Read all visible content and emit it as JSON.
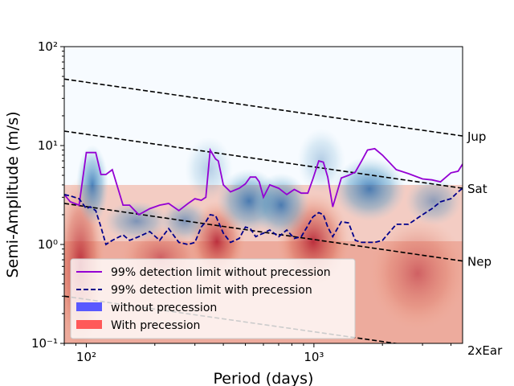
{
  "chart_data": {
    "type": "scatter",
    "xlabel": "Period (days)",
    "ylabel": "Semi-Amplitude (m/s)",
    "x_scale": "log",
    "y_scale": "log",
    "xlim": [
      80,
      4500
    ],
    "ylim": [
      0.1,
      100
    ],
    "x_ticks": [
      {
        "value": 100,
        "label": "10²"
      },
      {
        "value": 1000,
        "label": "10³"
      }
    ],
    "y_ticks": [
      {
        "value": 100,
        "label": "10²"
      },
      {
        "value": 10,
        "label": "10¹"
      },
      {
        "value": 1,
        "label": "10⁰"
      },
      {
        "value": 0.1,
        "label": "10⁻¹"
      }
    ],
    "grid": false,
    "legend_position": "lower-left",
    "reference_lines": [
      {
        "label": "Jup",
        "x": [
          80,
          4500
        ],
        "y": [
          47,
          12.5
        ],
        "color": "#000000"
      },
      {
        "label": "Sat",
        "x": [
          80,
          4500
        ],
        "y": [
          14,
          3.7
        ],
        "color": "#000000"
      },
      {
        "label": "Nep",
        "x": [
          80,
          4500
        ],
        "y": [
          2.6,
          0.68
        ],
        "color": "#000000"
      },
      {
        "label": "2xEar",
        "x": [
          80,
          4500
        ],
        "y": [
          0.3,
          0.08
        ],
        "color": "#000000"
      }
    ],
    "series": [
      {
        "name": "99% detection limit without precession",
        "style": "solid",
        "color": "#9400d3",
        "x": [
          80,
          85,
          93,
          100,
          104,
          110,
          116,
          122,
          130,
          145,
          155,
          170,
          190,
          210,
          230,
          255,
          280,
          300,
          320,
          335,
          350,
          370,
          380,
          400,
          430,
          470,
          500,
          525,
          555,
          575,
          600,
          640,
          700,
          760,
          820,
          880,
          940,
          990,
          1050,
          1100,
          1150,
          1210,
          1320,
          1420,
          1520,
          1620,
          1720,
          1850,
          2000,
          2300,
          2600,
          3000,
          3300,
          3600,
          4000,
          4300,
          4500
        ],
        "y": [
          3.2,
          2.7,
          2.5,
          8.5,
          8.5,
          8.5,
          5.1,
          5.1,
          5.7,
          2.5,
          2.5,
          2.0,
          2.3,
          2.5,
          2.6,
          2.2,
          2.6,
          2.9,
          2.8,
          3.0,
          9.0,
          7.3,
          7.0,
          4.0,
          3.4,
          3.7,
          4.1,
          4.8,
          4.8,
          4.3,
          3.0,
          4.0,
          3.7,
          3.2,
          3.6,
          3.3,
          3.3,
          4.6,
          7.0,
          6.8,
          4.8,
          2.4,
          4.7,
          5.0,
          5.4,
          7.0,
          9.0,
          9.3,
          8.0,
          5.7,
          5.2,
          4.6,
          4.5,
          4.3,
          5.3,
          5.5,
          6.5
        ]
      },
      {
        "name": "99% detection limit with precession",
        "style": "dashed",
        "color": "#00008b",
        "x": [
          80,
          85,
          93,
          100,
          104,
          110,
          116,
          122,
          130,
          145,
          155,
          170,
          190,
          210,
          230,
          255,
          280,
          300,
          320,
          335,
          350,
          370,
          400,
          430,
          470,
          500,
          525,
          555,
          575,
          600,
          640,
          700,
          760,
          820,
          880,
          940,
          990,
          1050,
          1100,
          1150,
          1210,
          1320,
          1420,
          1520,
          1620,
          1720,
          1850,
          2000,
          2300,
          2600,
          3000,
          3300,
          3600,
          4000,
          4300,
          4500
        ],
        "y": [
          3.2,
          3.1,
          2.9,
          2.3,
          2.4,
          2.2,
          1.5,
          1.0,
          1.1,
          1.25,
          1.1,
          1.2,
          1.35,
          1.1,
          1.45,
          1.05,
          1.0,
          1.05,
          1.5,
          1.7,
          2.0,
          1.95,
          1.3,
          1.05,
          1.15,
          1.5,
          1.45,
          1.2,
          1.25,
          1.3,
          1.4,
          1.2,
          1.4,
          1.15,
          1.2,
          1.55,
          1.9,
          2.1,
          2.0,
          1.5,
          1.2,
          1.7,
          1.65,
          1.1,
          1.05,
          1.05,
          1.05,
          1.1,
          1.6,
          1.6,
          2.0,
          2.3,
          2.7,
          2.9,
          3.4,
          3.7
        ]
      }
    ],
    "hexbin_legend": [
      {
        "name": "without precession",
        "color": "#5959ff"
      },
      {
        "name": "With precession",
        "color": "#ff5959"
      }
    ]
  }
}
